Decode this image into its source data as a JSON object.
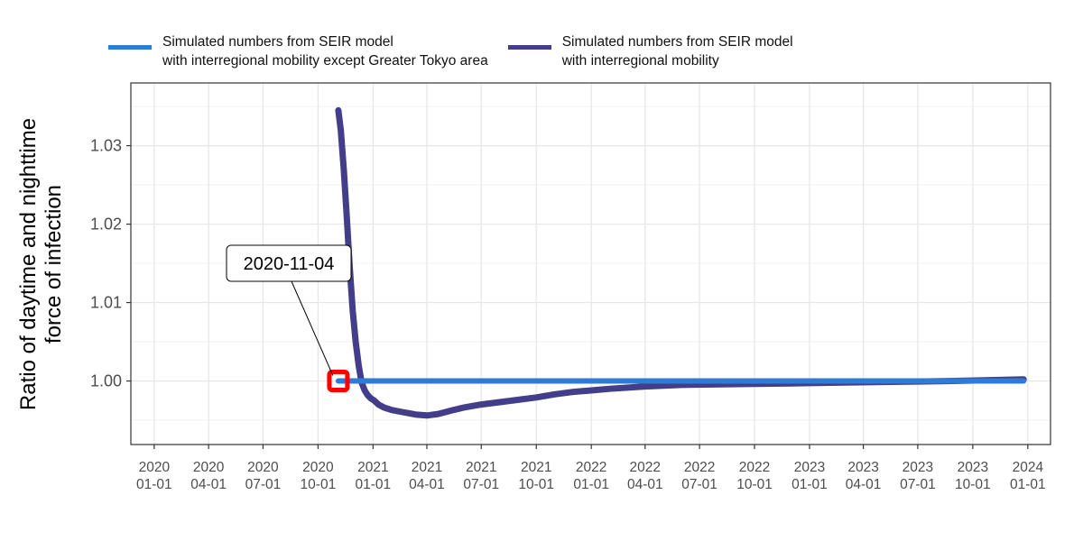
{
  "chart_data": {
    "type": "line",
    "xlabel": "",
    "ylabel": "Ratio of daytime and nighttime\nforce of infection",
    "x_ticks": [
      "2020-01-01",
      "2020-04-01",
      "2020-07-01",
      "2020-10-01",
      "2021-01-01",
      "2021-04-01",
      "2021-07-01",
      "2021-10-01",
      "2022-01-01",
      "2022-04-01",
      "2022-07-01",
      "2022-10-01",
      "2023-01-01",
      "2023-04-01",
      "2023-07-01",
      "2023-10-01",
      "2024-01-01"
    ],
    "x_tick_labels": [
      "2020\n01-01",
      "2020\n04-01",
      "2020\n07-01",
      "2020\n10-01",
      "2021\n01-01",
      "2021\n04-01",
      "2021\n07-01",
      "2021\n10-01",
      "2022\n01-01",
      "2022\n04-01",
      "2022\n07-01",
      "2022\n10-01",
      "2023\n01-01",
      "2023\n04-01",
      "2023\n07-01",
      "2023\n10-01",
      "2024\n01-01"
    ],
    "y_ticks": [
      1.0,
      1.01,
      1.02,
      1.03
    ],
    "y_tick_labels": [
      "1.00",
      "1.01",
      "1.02",
      "1.03"
    ],
    "xlim": [
      "2019-11-23",
      "2024-02-08"
    ],
    "ylim": [
      0.9919,
      1.038
    ],
    "grid": true,
    "legend_position": "top",
    "annotation": {
      "label": "2020-11-04",
      "x": "2020-11-04",
      "y": 1.0,
      "marker_color": "#ff0000"
    },
    "series": [
      {
        "name": "Simulated numbers from SEIR model\nwith interregional mobility except Greater Tokyo area",
        "color": "#2f7bd6",
        "x": [
          "2020-11-04",
          "2023-12-25"
        ],
        "values": [
          1.0,
          1.0
        ]
      },
      {
        "name": "Simulated numbers from SEIR model\nwith interregional mobility",
        "color": "#433d8a",
        "x": [
          "2020-11-04",
          "2020-11-08",
          "2020-11-13",
          "2020-11-18",
          "2020-11-23",
          "2020-11-28",
          "2020-12-03",
          "2020-12-08",
          "2020-12-13",
          "2020-12-18",
          "2020-12-23",
          "2020-12-28",
          "2021-01-03",
          "2021-01-10",
          "2021-01-20",
          "2021-02-01",
          "2021-02-15",
          "2021-03-01",
          "2021-03-15",
          "2021-04-01",
          "2021-04-20",
          "2021-05-10",
          "2021-06-01",
          "2021-07-01",
          "2021-08-01",
          "2021-09-01",
          "2021-10-01",
          "2021-11-01",
          "2021-12-01",
          "2022-01-01",
          "2022-02-01",
          "2022-04-01",
          "2022-06-01",
          "2022-09-01",
          "2022-12-01",
          "2023-03-01",
          "2023-06-01",
          "2023-09-01",
          "2023-12-25"
        ],
        "values": [
          1.0345,
          1.032,
          1.027,
          1.021,
          1.0145,
          1.009,
          1.005,
          1.002,
          0.9998,
          0.9988,
          0.9982,
          0.9978,
          0.9975,
          0.997,
          0.9966,
          0.9963,
          0.9961,
          0.9959,
          0.9957,
          0.9956,
          0.9958,
          0.9962,
          0.9966,
          0.997,
          0.9973,
          0.9976,
          0.9979,
          0.9983,
          0.9986,
          0.9988,
          0.999,
          0.9993,
          0.9995,
          0.9996,
          0.9997,
          0.9998,
          0.9999,
          1.0,
          1.0002
        ]
      }
    ]
  }
}
